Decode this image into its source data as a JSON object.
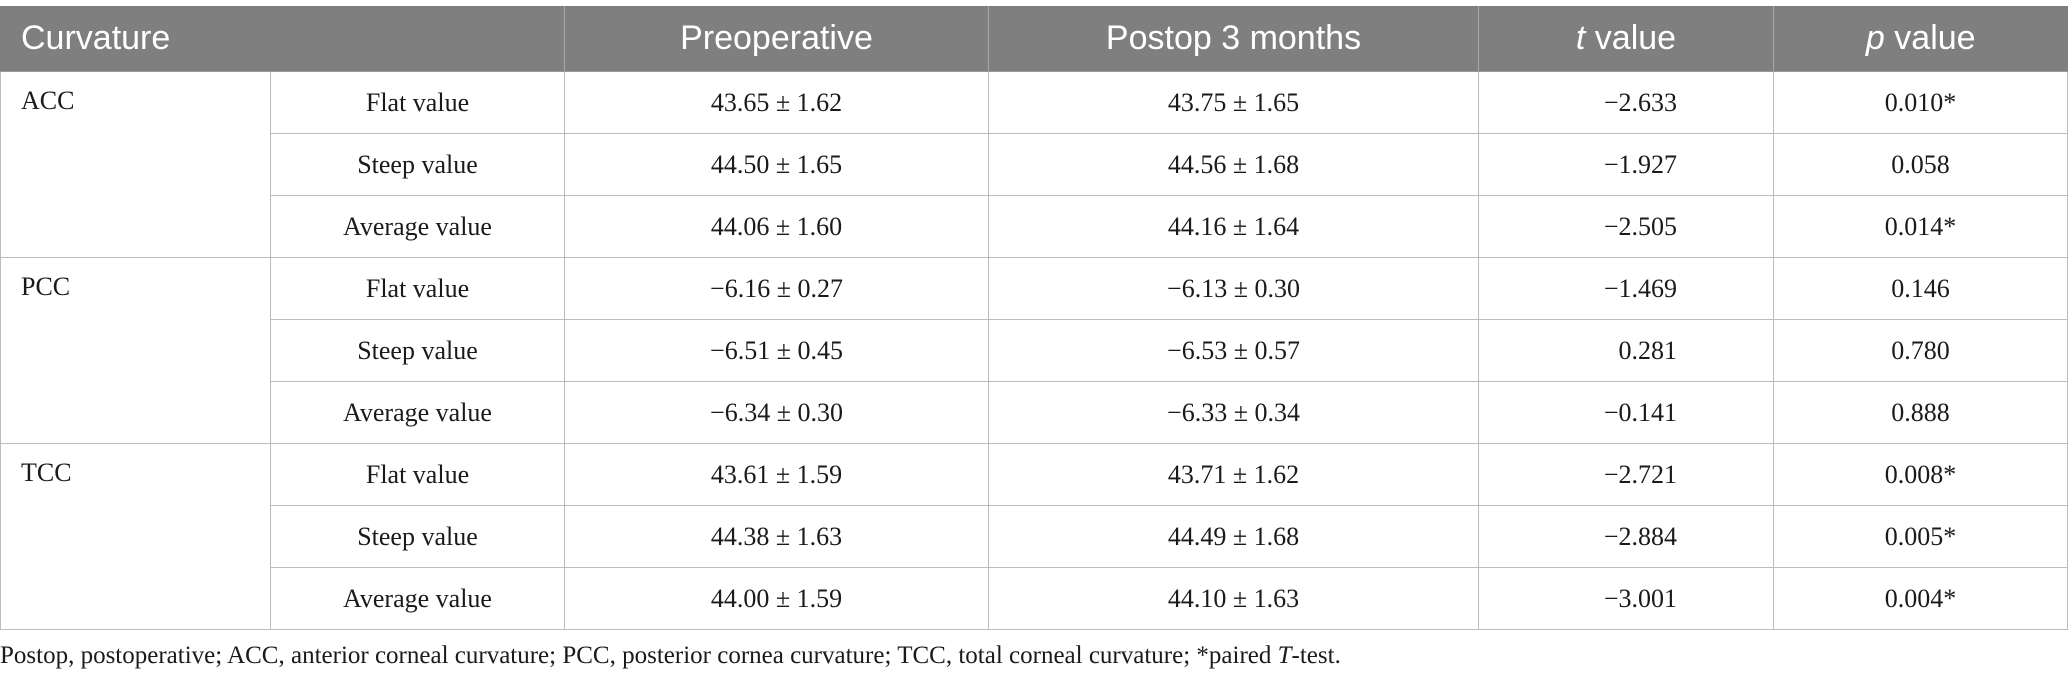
{
  "table": {
    "headers": {
      "curvature": "Curvature",
      "preoperative": "Preoperative",
      "postop": "Postop 3 months",
      "t_italic": "t",
      "t_rest": " value",
      "p_italic": "p",
      "p_rest": " value"
    },
    "groups": [
      {
        "name": "ACC",
        "rows": [
          {
            "measure": "Flat value",
            "pre": "43.65 ± 1.62",
            "post": "43.75 ± 1.65",
            "t": "−2.633",
            "p": "0.010*"
          },
          {
            "measure": "Steep value",
            "pre": "44.50 ± 1.65",
            "post": "44.56 ± 1.68",
            "t": "−1.927",
            "p": "0.058"
          },
          {
            "measure": "Average value",
            "pre": "44.06 ± 1.60",
            "post": "44.16 ± 1.64",
            "t": "−2.505",
            "p": "0.014*"
          }
        ]
      },
      {
        "name": "PCC",
        "rows": [
          {
            "measure": "Flat value",
            "pre": "−6.16 ± 0.27",
            "post": "−6.13 ± 0.30",
            "t": "−1.469",
            "p": "0.146"
          },
          {
            "measure": "Steep value",
            "pre": "−6.51 ± 0.45",
            "post": "−6.53 ± 0.57",
            "t": "0.281",
            "p": "0.780"
          },
          {
            "measure": "Average value",
            "pre": "−6.34 ± 0.30",
            "post": "−6.33 ± 0.34",
            "t": "−0.141",
            "p": "0.888"
          }
        ]
      },
      {
        "name": "TCC",
        "rows": [
          {
            "measure": "Flat value",
            "pre": "43.61 ± 1.59",
            "post": "43.71 ± 1.62",
            "t": "−2.721",
            "p": "0.008*"
          },
          {
            "measure": "Steep value",
            "pre": "44.38 ± 1.63",
            "post": "44.49 ± 1.68",
            "t": "−2.884",
            "p": "0.005*"
          },
          {
            "measure": "Average value",
            "pre": "44.00 ± 1.59",
            "post": "44.10 ± 1.63",
            "t": "−3.001",
            "p": "0.004*"
          }
        ]
      }
    ]
  },
  "footnote": {
    "main": "Postop, postoperative; ACC, anterior corneal curvature; PCC, posterior cornea curvature; TCC, total corneal curvature; *paired ",
    "italic": "T",
    "end": "-test."
  }
}
